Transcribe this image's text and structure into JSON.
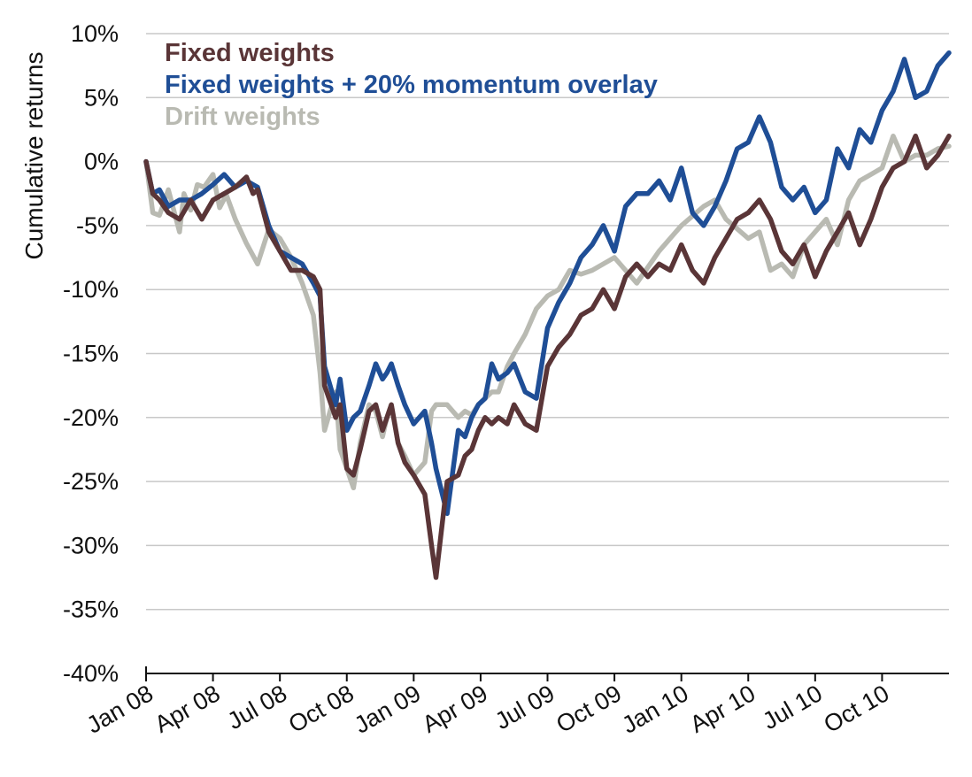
{
  "chart_data": {
    "type": "line",
    "ylabel": "Cumulative returns",
    "ylim": [
      -40,
      10
    ],
    "yticks": [
      10,
      5,
      0,
      -5,
      -10,
      -15,
      -20,
      -25,
      -30,
      -35,
      -40
    ],
    "ytick_labels": [
      "10%",
      "5%",
      "0%",
      "-5%",
      "-10%",
      "-15%",
      "-20%",
      "-25%",
      "-30%",
      "-35%",
      "-40%"
    ],
    "x_months_range": [
      0,
      36
    ],
    "xticks": [
      0,
      3,
      6,
      9,
      12,
      15,
      18,
      21,
      24,
      27,
      30,
      33
    ],
    "xtick_labels": [
      "Jan 08",
      "Apr 08",
      "Jul 08",
      "Oct 08",
      "Jan 09",
      "Apr 09",
      "Jul 09",
      "Oct 09",
      "Jan 10",
      "Apr 10",
      "Jul 10",
      "Oct 10"
    ],
    "grid": true,
    "legend_position": "top-left",
    "series": [
      {
        "name": "Drift weights",
        "color": "#b9bab2",
        "x": [
          0,
          0.3,
          0.6,
          1.0,
          1.5,
          1.7,
          2.0,
          2.3,
          2.6,
          3.0,
          3.3,
          3.6,
          4.0,
          4.5,
          5.0,
          5.5,
          6.0,
          6.5,
          7.0,
          7.5,
          7.8,
          8.0,
          8.5,
          8.7,
          9.0,
          9.3,
          9.6,
          10.0,
          10.3,
          10.6,
          10.8,
          11.0,
          11.3,
          11.6,
          12.0,
          12.5,
          12.8,
          13.0,
          13.5,
          14.0,
          14.3,
          14.6,
          14.9,
          15.2,
          15.5,
          15.8,
          16.2,
          16.5,
          17.0,
          17.5,
          18.0,
          18.5,
          19.0,
          19.5,
          20.0,
          21.0,
          22.0,
          23.0,
          24.0,
          25.0,
          25.5,
          26.0,
          27.0,
          27.5,
          28.0,
          28.5,
          29.0,
          29.5,
          30.0,
          30.5,
          31.0,
          31.5,
          32.0,
          32.5,
          33.0,
          33.5,
          34.0,
          34.5,
          35.0,
          35.5,
          36.0
        ],
        "values": [
          0,
          -4.0,
          -4.2,
          -2.2,
          -5.5,
          -2.5,
          -3.8,
          -1.8,
          -2.0,
          -1.0,
          -3.6,
          -2.6,
          -4.5,
          -6.4,
          -8.0,
          -5.3,
          -6.0,
          -7.5,
          -9.5,
          -12.0,
          -16.5,
          -21.0,
          -18.0,
          -22.5,
          -24.0,
          -25.5,
          -22.0,
          -19.0,
          -19.5,
          -21.5,
          -20.0,
          -19.0,
          -22.0,
          -23.0,
          -24.5,
          -23.5,
          -19.5,
          -19.0,
          -19.0,
          -20.0,
          -19.5,
          -19.8,
          -19.0,
          -18.5,
          -18.0,
          -18.0,
          -16.0,
          -15.0,
          -13.5,
          -11.5,
          -10.5,
          -10.0,
          -8.5,
          -8.8,
          -8.5,
          -7.5,
          -9.5,
          -7.0,
          -5.0,
          -3.5,
          -3.0,
          -4.5,
          -6.0,
          -5.5,
          -8.5,
          -8.0,
          -9.0,
          -6.5,
          -5.5,
          -4.5,
          -6.5,
          -3.0,
          -1.5,
          -1.0,
          -0.5,
          2.0,
          0.0,
          0.5,
          0.5,
          1.0,
          1.2
        ]
      },
      {
        "name": "Fixed weights + 20% momentum overlay",
        "color": "#1f4e96",
        "x": [
          0,
          0.3,
          0.6,
          1.0,
          1.5,
          2.0,
          2.5,
          3.0,
          3.5,
          4.0,
          4.5,
          4.8,
          5.0,
          5.5,
          6.0,
          6.5,
          7.0,
          7.5,
          7.8,
          8.0,
          8.5,
          8.7,
          9.0,
          9.3,
          9.6,
          10.0,
          10.3,
          10.6,
          10.8,
          11.0,
          11.3,
          11.6,
          12.0,
          12.5,
          12.8,
          13.0,
          13.5,
          14.0,
          14.3,
          14.6,
          14.9,
          15.2,
          15.5,
          15.8,
          16.2,
          16.5,
          17.0,
          17.5,
          18.0,
          18.5,
          19.0,
          19.5,
          20.0,
          20.5,
          21.0,
          21.5,
          22.0,
          22.5,
          23.0,
          23.5,
          24.0,
          24.5,
          25.0,
          25.5,
          26.0,
          26.5,
          27.0,
          27.5,
          28.0,
          28.5,
          29.0,
          29.5,
          30.0,
          30.5,
          31.0,
          31.5,
          32.0,
          32.5,
          33.0,
          33.5,
          34.0,
          34.5,
          35.0,
          35.5,
          36.0
        ],
        "values": [
          0,
          -2.5,
          -2.2,
          -3.5,
          -3.0,
          -3.0,
          -2.5,
          -1.8,
          -1.0,
          -2.0,
          -1.5,
          -1.8,
          -2.0,
          -5.0,
          -7.0,
          -7.5,
          -8.0,
          -9.5,
          -10.5,
          -16.0,
          -19.0,
          -17.0,
          -21.0,
          -20.0,
          -19.5,
          -17.5,
          -15.8,
          -17.0,
          -16.5,
          -15.8,
          -17.5,
          -19.0,
          -20.5,
          -19.5,
          -22.0,
          -24.0,
          -27.5,
          -21.0,
          -21.5,
          -20.0,
          -19.0,
          -18.5,
          -15.8,
          -17.0,
          -16.5,
          -15.8,
          -18.0,
          -18.5,
          -13.0,
          -11.0,
          -9.5,
          -7.5,
          -6.5,
          -5.0,
          -7.0,
          -3.5,
          -2.5,
          -2.5,
          -1.5,
          -3.0,
          -0.5,
          -4.0,
          -5.0,
          -3.5,
          -1.5,
          1.0,
          1.5,
          3.5,
          1.5,
          -2.0,
          -3.0,
          -2.0,
          -4.0,
          -3.0,
          1.0,
          -0.5,
          2.5,
          1.5,
          4.0,
          5.5,
          8.0,
          5.0,
          5.5,
          7.5,
          8.5
        ]
      },
      {
        "name": "Fixed weights",
        "color": "#5a3537",
        "x": [
          0,
          0.3,
          0.6,
          1.0,
          1.5,
          2.0,
          2.5,
          3.0,
          3.5,
          4.0,
          4.5,
          4.8,
          5.0,
          5.5,
          6.0,
          6.5,
          7.0,
          7.5,
          7.8,
          8.0,
          8.5,
          8.7,
          9.0,
          9.3,
          9.6,
          10.0,
          10.3,
          10.6,
          10.8,
          11.0,
          11.3,
          11.6,
          12.0,
          12.5,
          12.8,
          13.0,
          13.5,
          14.0,
          14.3,
          14.6,
          14.9,
          15.2,
          15.5,
          15.8,
          16.2,
          16.5,
          17.0,
          17.5,
          18.0,
          18.5,
          19.0,
          19.5,
          20.0,
          20.5,
          21.0,
          21.5,
          22.0,
          22.5,
          23.0,
          23.5,
          24.0,
          24.5,
          25.0,
          25.5,
          26.0,
          26.5,
          27.0,
          27.5,
          28.0,
          28.5,
          29.0,
          29.5,
          30.0,
          30.5,
          31.0,
          31.5,
          32.0,
          32.5,
          33.0,
          33.5,
          34.0,
          34.5,
          35.0,
          35.5,
          36.0
        ],
        "values": [
          0,
          -2.5,
          -3.0,
          -4.0,
          -4.5,
          -3.0,
          -4.5,
          -3.0,
          -2.5,
          -2.0,
          -1.2,
          -2.5,
          -2.2,
          -5.5,
          -7.0,
          -8.5,
          -8.5,
          -9.0,
          -10.0,
          -17.5,
          -20.0,
          -19.0,
          -24.0,
          -24.5,
          -22.5,
          -19.5,
          -19.0,
          -21.0,
          -20.0,
          -19.0,
          -22.0,
          -23.5,
          -24.5,
          -26.0,
          -30.0,
          -32.5,
          -25.0,
          -24.5,
          -23.0,
          -22.5,
          -21.0,
          -20.0,
          -20.5,
          -20.0,
          -20.5,
          -19.0,
          -20.5,
          -21.0,
          -16.0,
          -14.5,
          -13.5,
          -12.0,
          -11.5,
          -10.0,
          -11.5,
          -9.0,
          -8.0,
          -9.0,
          -8.0,
          -8.5,
          -6.5,
          -8.5,
          -9.5,
          -7.5,
          -6.0,
          -4.5,
          -4.0,
          -3.0,
          -4.5,
          -7.0,
          -8.0,
          -6.5,
          -9.0,
          -7.0,
          -5.5,
          -4.0,
          -6.5,
          -4.5,
          -2.0,
          -0.5,
          0.0,
          2.0,
          -0.5,
          0.5,
          2.0
        ]
      }
    ],
    "legend_order": [
      "Fixed weights",
      "Fixed weights + 20% momentum overlay",
      "Drift weights"
    ]
  }
}
